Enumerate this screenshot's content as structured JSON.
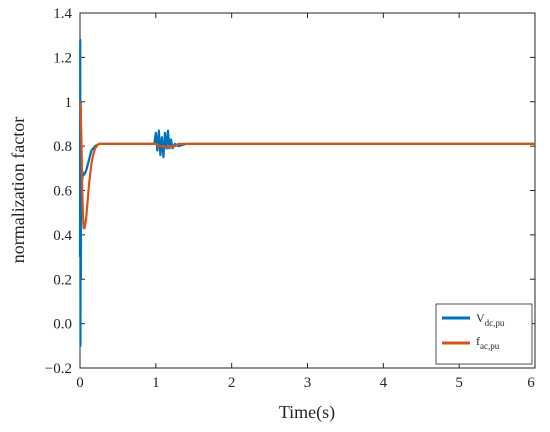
{
  "chart_data": {
    "type": "line",
    "title": "",
    "xlabel": "Time(s)",
    "ylabel": "normalization factor",
    "xlim": [
      0,
      6
    ],
    "ylim": [
      -0.2,
      1.4
    ],
    "xticks": [
      "0",
      "1",
      "2",
      "3",
      "4",
      "5",
      "6"
    ],
    "xtick_values": [
      0,
      1,
      2,
      3,
      4,
      5,
      6
    ],
    "yticks": [
      "−0.2",
      "0.0",
      "0.2",
      "0.4",
      "0.6",
      "0.8",
      "1",
      "1.2",
      "1.4"
    ],
    "ytick_values": [
      -0.2,
      0.0,
      0.2,
      0.4,
      0.6,
      0.8,
      1.0,
      1.2,
      1.4
    ],
    "grid": false,
    "legend_position": "bottom-right",
    "series": [
      {
        "name": "V",
        "name_sub": "dc,pu",
        "color": "#0072BD",
        "x": [
          0,
          0.003,
          0.006,
          0.009,
          0.012,
          0.015,
          0.02,
          0.025,
          0.03,
          0.04,
          0.05,
          0.07,
          0.09,
          0.12,
          0.15,
          0.2,
          0.25,
          0.3,
          0.4,
          0.6,
          0.8,
          0.98,
          1.0,
          1.02,
          1.04,
          1.06,
          1.08,
          1.1,
          1.12,
          1.14,
          1.16,
          1.18,
          1.2,
          1.22,
          1.25,
          1.3,
          1.4,
          1.6,
          2.0,
          3.0,
          4.0,
          5.0,
          6.0
        ],
        "y": [
          0.3,
          1.28,
          -0.1,
          1.0,
          0.2,
          0.75,
          0.6,
          0.7,
          0.65,
          0.68,
          0.67,
          0.68,
          0.7,
          0.74,
          0.78,
          0.8,
          0.81,
          0.81,
          0.81,
          0.81,
          0.81,
          0.81,
          0.86,
          0.78,
          0.87,
          0.76,
          0.84,
          0.75,
          0.86,
          0.79,
          0.87,
          0.79,
          0.83,
          0.79,
          0.81,
          0.8,
          0.81,
          0.81,
          0.81,
          0.81,
          0.81,
          0.81,
          0.81
        ]
      },
      {
        "name": "f",
        "name_sub": "ac,pu",
        "color": "#D95319",
        "x": [
          0,
          0.01,
          0.02,
          0.03,
          0.04,
          0.05,
          0.06,
          0.08,
          0.1,
          0.12,
          0.15,
          0.18,
          0.2,
          0.22,
          0.25,
          0.3,
          0.4,
          0.6,
          0.8,
          1.0,
          1.05,
          1.1,
          1.15,
          1.2,
          1.25,
          1.3,
          1.5,
          2.0,
          3.0,
          4.0,
          5.0,
          6.0
        ],
        "y": [
          1.0,
          0.97,
          0.8,
          0.6,
          0.48,
          0.43,
          0.43,
          0.47,
          0.55,
          0.63,
          0.72,
          0.77,
          0.79,
          0.8,
          0.81,
          0.81,
          0.81,
          0.81,
          0.81,
          0.81,
          0.8,
          0.8,
          0.79,
          0.8,
          0.8,
          0.81,
          0.81,
          0.81,
          0.81,
          0.81,
          0.81,
          0.81
        ]
      }
    ]
  }
}
